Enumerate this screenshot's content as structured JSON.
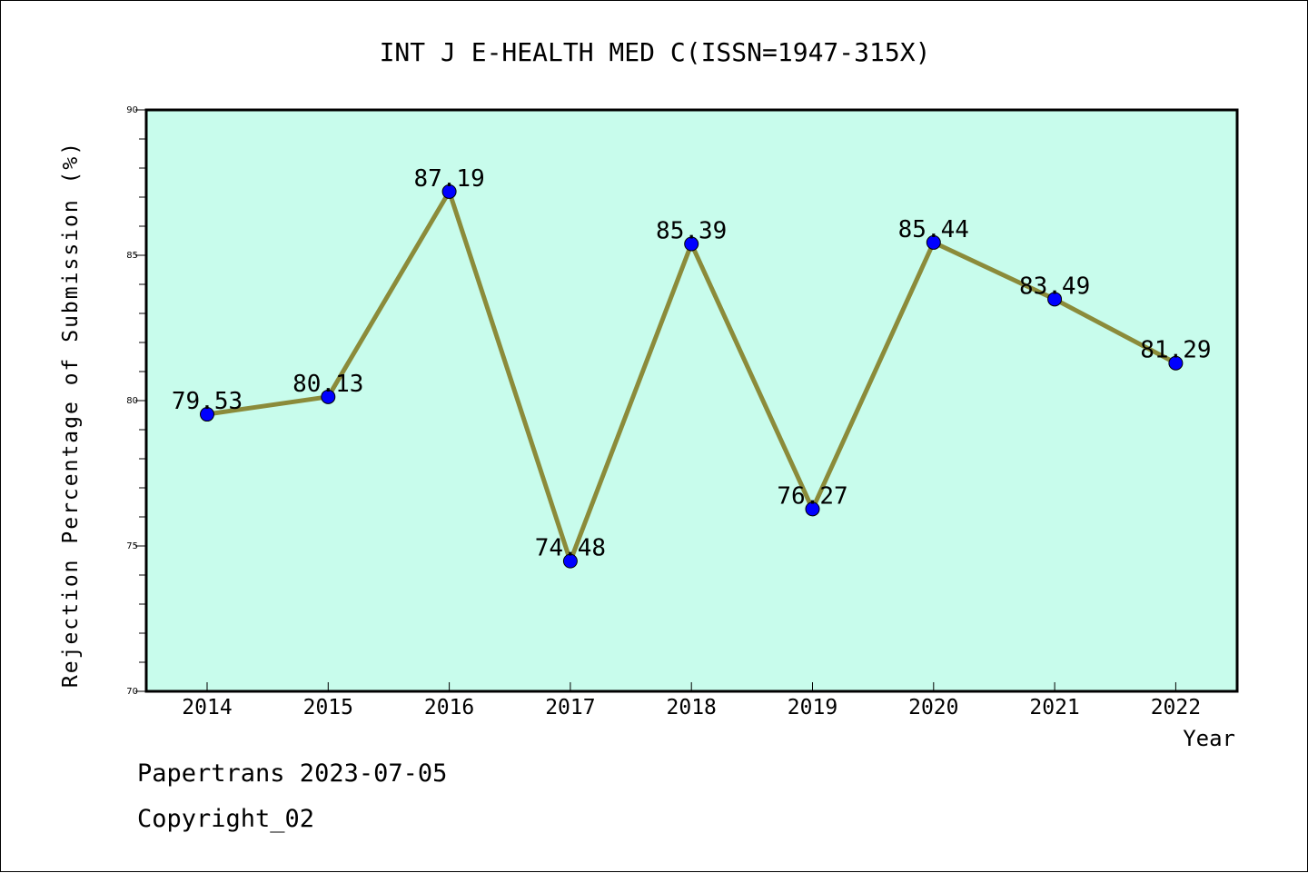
{
  "chart_data": {
    "type": "line",
    "title": "INT J E-HEALTH MED C(ISSN=1947-315X)",
    "xlabel": "Year",
    "ylabel": "Rejection Percentage of Submission (%)",
    "categories": [
      "2014",
      "2015",
      "2016",
      "2017",
      "2018",
      "2019",
      "2020",
      "2021",
      "2022"
    ],
    "values": [
      79.53,
      80.13,
      87.19,
      74.48,
      85.39,
      76.27,
      85.44,
      83.49,
      81.29
    ],
    "data_labels": [
      "79.53",
      "80.13",
      "87.19",
      "74.48",
      "85.39",
      "76.27",
      "85.44",
      "83.49",
      "81.29"
    ],
    "ylim": [
      70,
      90
    ],
    "y_ticks": [
      "70",
      "75",
      "80",
      "85",
      "90"
    ],
    "grid": false,
    "colors": {
      "plot_background": "#c8fcec",
      "line": "#8b8b3a",
      "marker": "#0000ff"
    }
  },
  "footer": {
    "line1": "Papertrans 2023-07-05",
    "line2": "Copyright_02"
  }
}
